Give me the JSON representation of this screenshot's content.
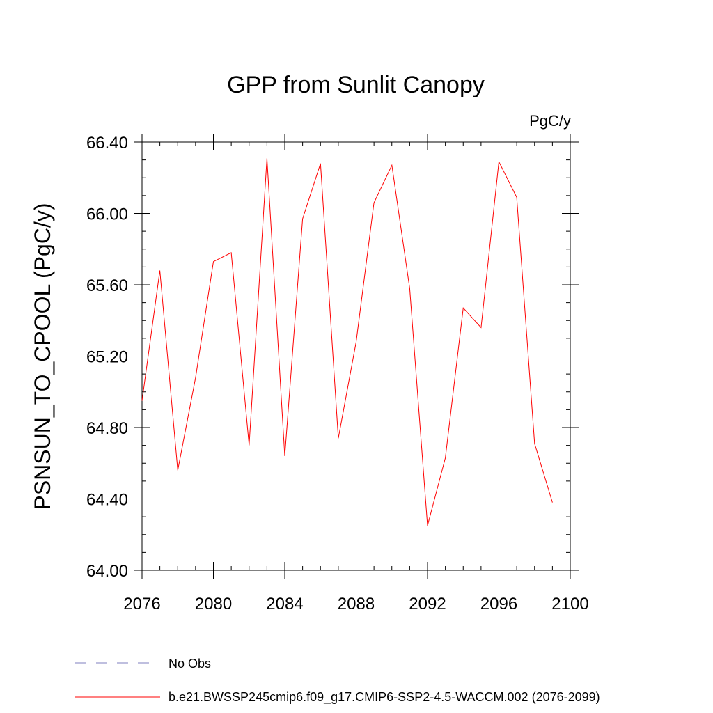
{
  "chart_data": {
    "type": "line",
    "title": "GPP from Sunlit Canopy",
    "units_label": "PgC/y",
    "xlabel": "",
    "ylabel": "PSNSUN_TO_CPOOL  (PgC/y)",
    "xlim": [
      2076,
      2100
    ],
    "ylim": [
      64.0,
      66.4
    ],
    "x_ticks": [
      2076,
      2080,
      2084,
      2088,
      2092,
      2096,
      2100
    ],
    "x_tick_labels": [
      "2076",
      "2080",
      "2084",
      "2088",
      "2092",
      "2096",
      "2100"
    ],
    "y_ticks": [
      64.0,
      64.4,
      64.8,
      65.2,
      65.6,
      66.0,
      66.4
    ],
    "y_tick_labels": [
      "64.00",
      "64.40",
      "64.80",
      "65.20",
      "65.60",
      "66.00",
      "66.40"
    ],
    "x": [
      2076,
      2077,
      2078,
      2079,
      2080,
      2081,
      2082,
      2083,
      2084,
      2085,
      2086,
      2087,
      2088,
      2089,
      2090,
      2091,
      2092,
      2093,
      2094,
      2095,
      2096,
      2097,
      2098,
      2099
    ],
    "series": [
      {
        "name": "b.e21.BWSSP245cmip6.f09_g17.CMIP6-SSP2-4.5-WACCM.002 (2076-2099)",
        "color": "#ff0000",
        "values": [
          64.95,
          65.68,
          64.56,
          65.08,
          65.73,
          65.78,
          64.7,
          66.31,
          64.64,
          65.97,
          66.28,
          64.74,
          65.28,
          66.06,
          66.27,
          65.58,
          64.25,
          64.63,
          65.47,
          65.36,
          66.29,
          66.09,
          64.71,
          64.38
        ]
      }
    ],
    "legend": [
      {
        "label": "No Obs",
        "color": "#7f7fbf",
        "style": "dashed"
      },
      {
        "label": "b.e21.BWSSP245cmip6.f09_g17.CMIP6-SSP2-4.5-WACCM.002 (2076-2099)",
        "color": "#ff0000",
        "style": "solid"
      }
    ]
  }
}
